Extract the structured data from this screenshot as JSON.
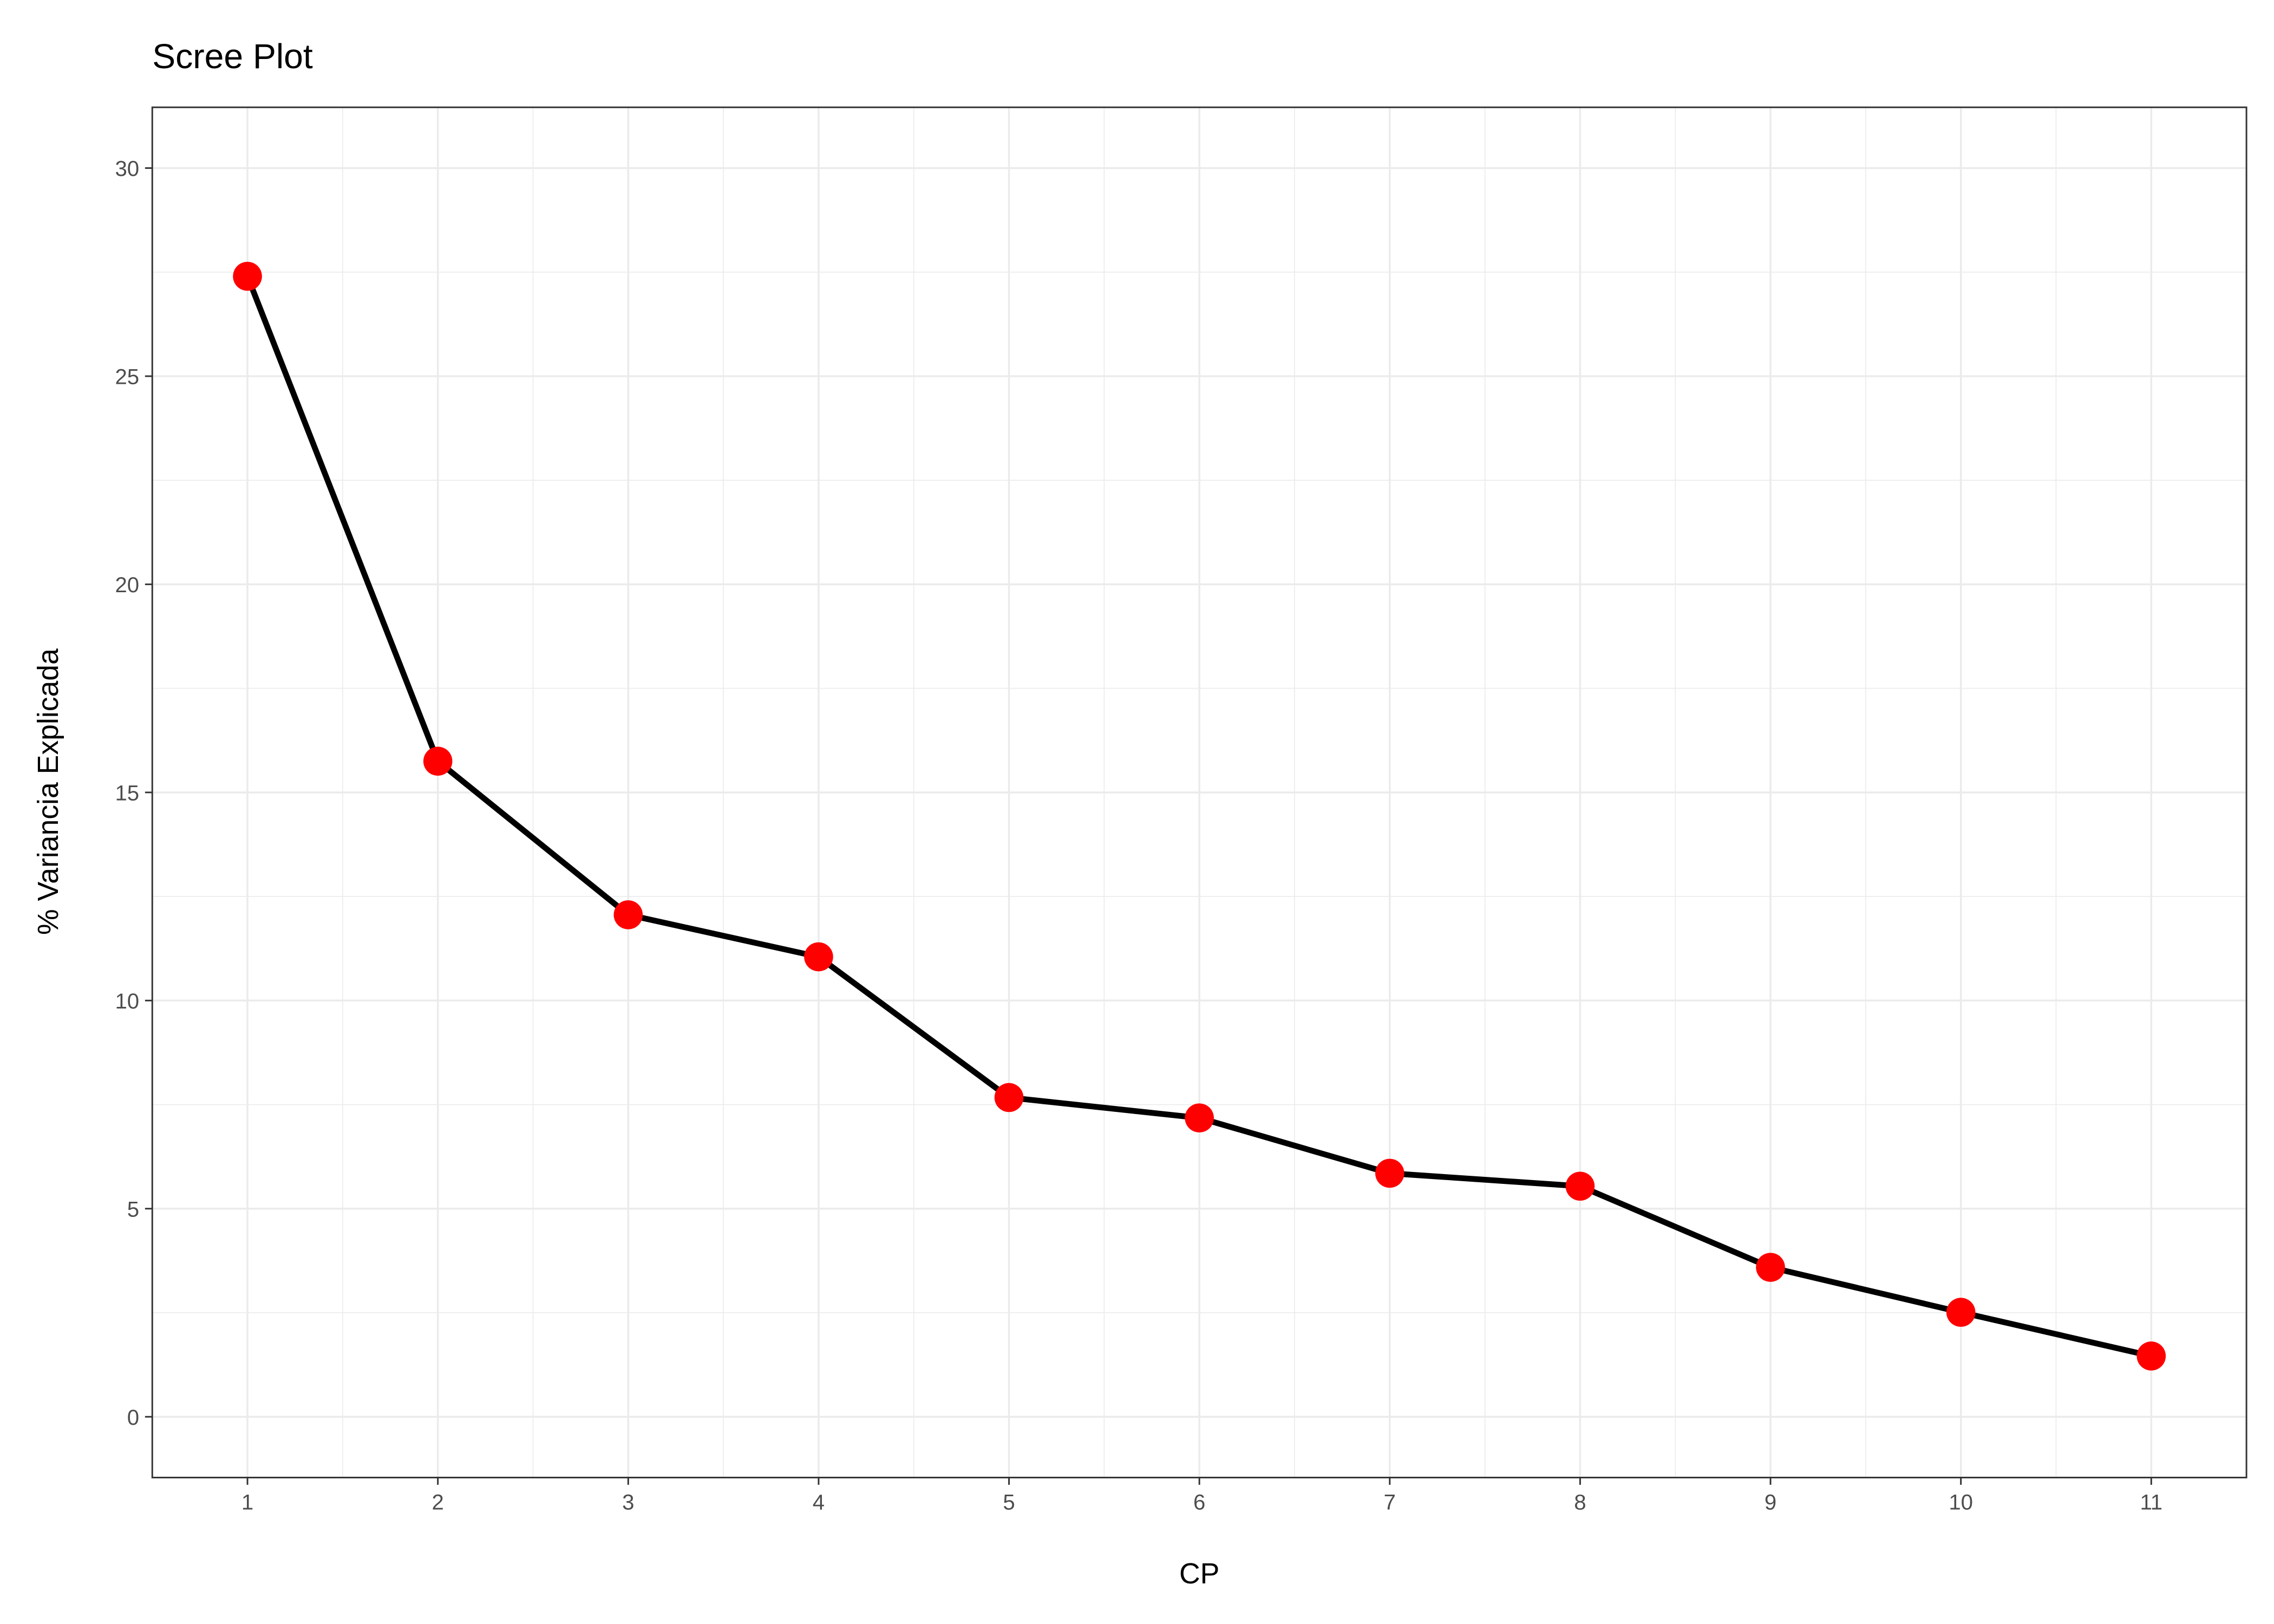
{
  "chart_data": {
    "type": "line",
    "title": "Scree Plot",
    "x_label": "CP",
    "y_label": "% Variancia Explicada",
    "x": [
      1,
      2,
      3,
      4,
      5,
      6,
      7,
      8,
      9,
      10,
      11
    ],
    "series": [
      {
        "color": "#ff0000",
        "values": [
          27.4,
          15.75,
          12.06,
          11.05,
          7.67,
          7.18,
          5.85,
          5.54,
          3.59,
          2.51,
          1.46
        ]
      }
    ],
    "line_color": "#000000",
    "xlim": [
      0.5,
      11.5
    ],
    "ylim": [
      -1.46,
      31.46
    ],
    "xticks": [
      1,
      2,
      3,
      4,
      5,
      6,
      7,
      8,
      9,
      10,
      11
    ],
    "yticks": [
      0,
      5,
      10,
      15,
      20,
      25,
      30
    ],
    "grid": true
  }
}
